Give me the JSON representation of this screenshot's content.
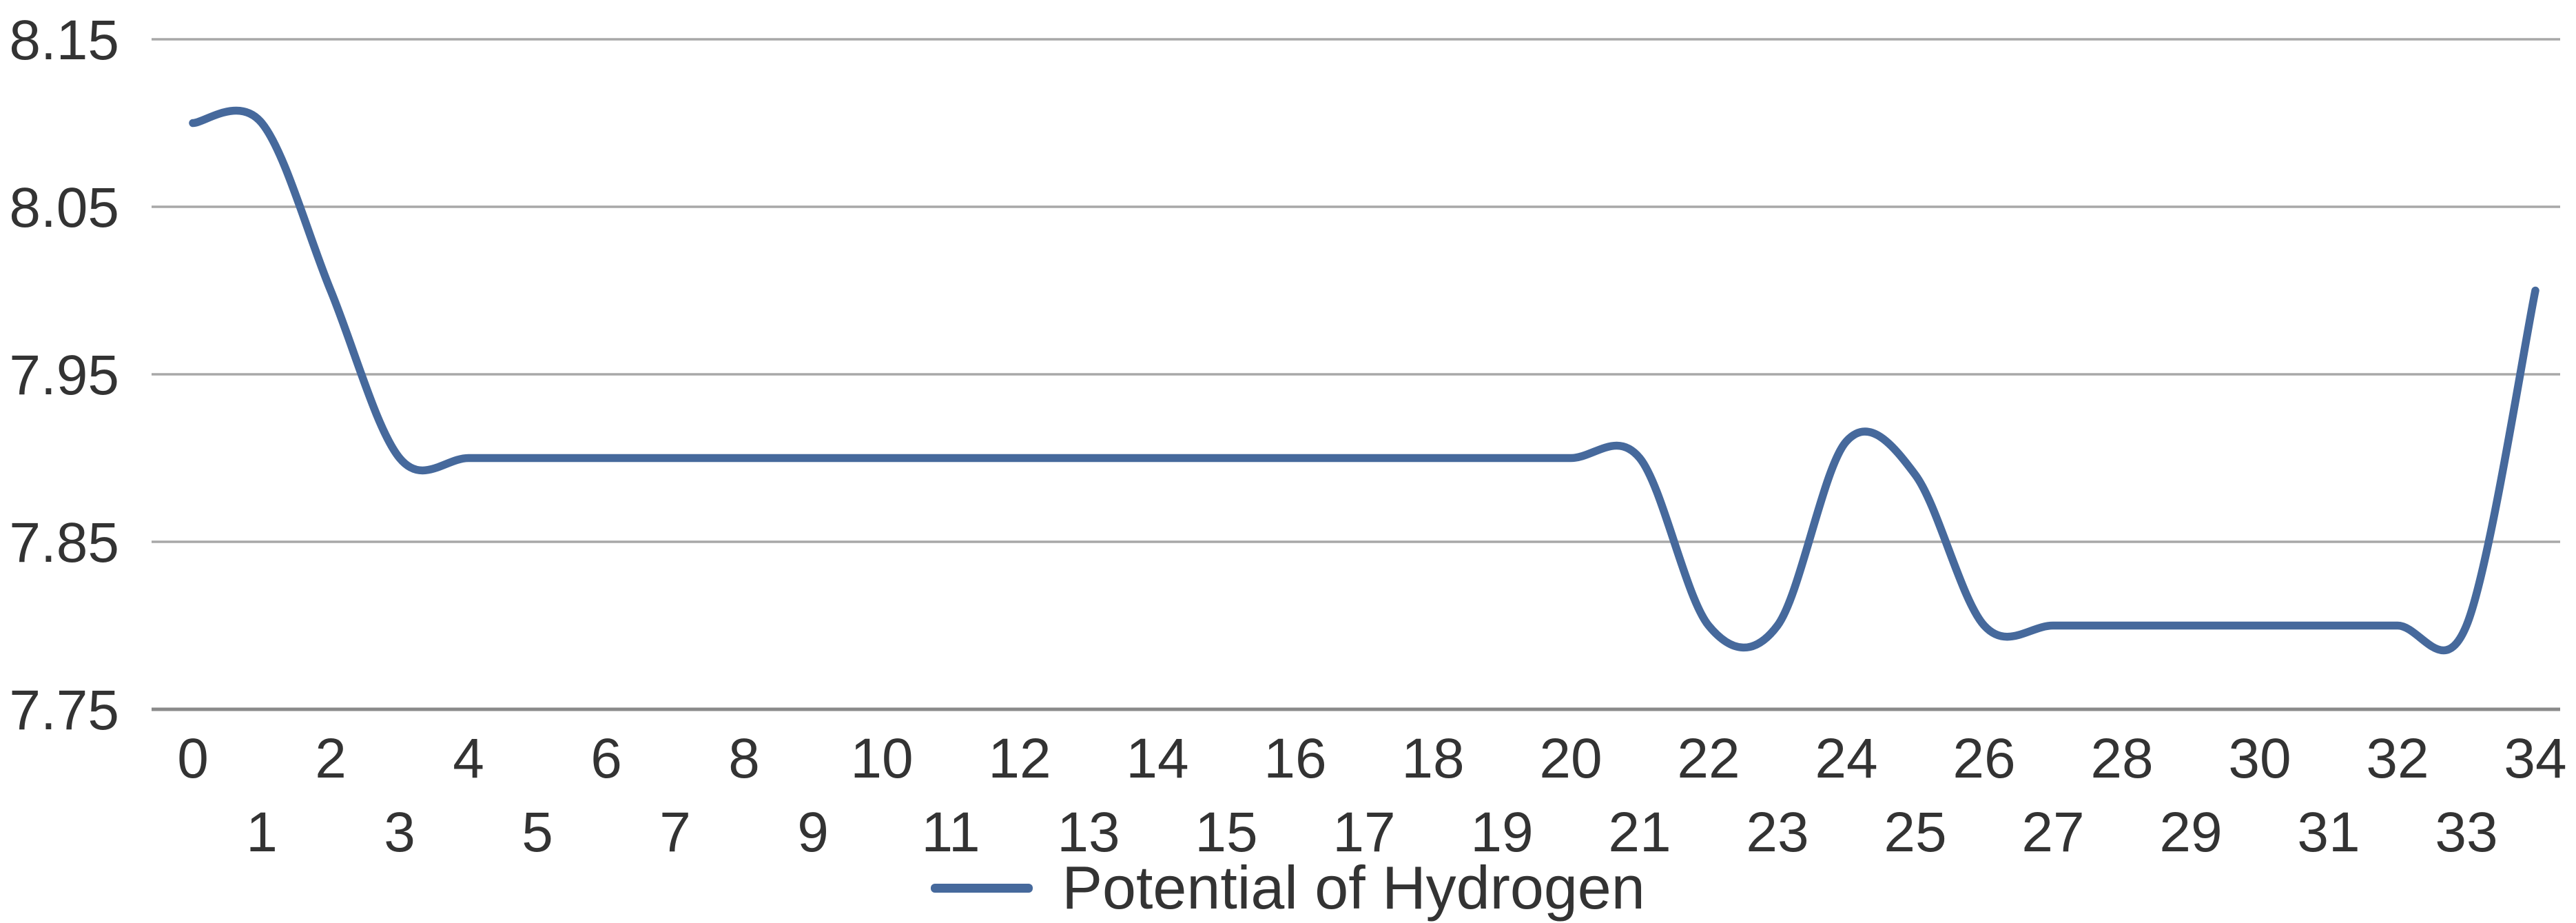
{
  "chart_data": {
    "type": "line",
    "title": "",
    "xlabel": "",
    "ylabel": "",
    "x": [
      0,
      1,
      2,
      3,
      4,
      5,
      6,
      7,
      8,
      9,
      10,
      11,
      12,
      13,
      14,
      15,
      16,
      17,
      18,
      19,
      20,
      21,
      22,
      23,
      24,
      25,
      26,
      27,
      28,
      29,
      30,
      31,
      32,
      33,
      34
    ],
    "series": [
      {
        "name": "Potential of Hydrogen",
        "values": [
          8.1,
          8.1,
          8.0,
          7.9,
          7.9,
          7.9,
          7.9,
          7.9,
          7.9,
          7.9,
          7.9,
          7.9,
          7.9,
          7.9,
          7.9,
          7.9,
          7.9,
          7.9,
          7.9,
          7.9,
          7.9,
          7.9,
          7.8,
          7.8,
          7.91,
          7.89,
          7.8,
          7.8,
          7.8,
          7.8,
          7.8,
          7.8,
          7.8,
          7.8,
          8.0
        ]
      }
    ],
    "yticks": [
      {
        "value": 8.15,
        "label": "8.15"
      },
      {
        "value": 8.05,
        "label": "8.05"
      },
      {
        "value": 7.95,
        "label": "7.95"
      },
      {
        "value": 7.85,
        "label": "7.85"
      },
      {
        "value": 7.75,
        "label": "7.75"
      }
    ],
    "ylim": [
      7.75,
      8.15
    ],
    "xlim": [
      0,
      34
    ],
    "grid": "horizontal-only",
    "line_style": "smooth",
    "legend_position": "bottom-center",
    "x_tick_layout": "staggered-two-rows"
  },
  "legend": {
    "label": "Potential of Hydrogen"
  },
  "colors": {
    "line": "#46699C",
    "gridline": "#A8A8A8",
    "axis_line": "#8A8A8A",
    "tick_text": "#333333",
    "background": "#FFFFFF"
  }
}
